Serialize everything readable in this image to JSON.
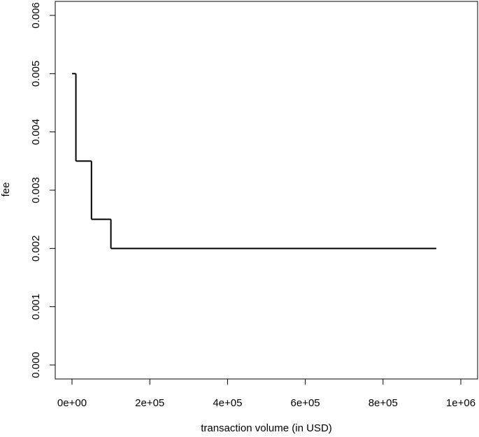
{
  "chart_data": {
    "type": "step",
    "x_label": "transaction volume (in USD)",
    "y_label": "fee",
    "x": [
      0,
      10000,
      50000,
      100000,
      937000
    ],
    "values": [
      0.005,
      0.0035,
      0.0025,
      0.002,
      0.002
    ],
    "color": "#000000",
    "xlim": [
      -43165,
      1043165
    ],
    "ylim": [
      -0.00024,
      0.00624
    ],
    "xticks": [
      {
        "value": 0,
        "label": "0e+00"
      },
      {
        "value": 200000,
        "label": "2e+05"
      },
      {
        "value": 400000,
        "label": "4e+05"
      },
      {
        "value": 600000,
        "label": "6e+05"
      },
      {
        "value": 800000,
        "label": "8e+05"
      },
      {
        "value": 1000000,
        "label": "1e+06"
      }
    ],
    "yticks": [
      {
        "value": 0,
        "label": "0.000"
      },
      {
        "value": 0.001,
        "label": "0.001"
      },
      {
        "value": 0.002,
        "label": "0.002"
      },
      {
        "value": 0.003,
        "label": "0.003"
      },
      {
        "value": 0.004,
        "label": "0.004"
      },
      {
        "value": 0.005,
        "label": "0.005"
      },
      {
        "value": 0.006,
        "label": "0.006"
      }
    ]
  }
}
